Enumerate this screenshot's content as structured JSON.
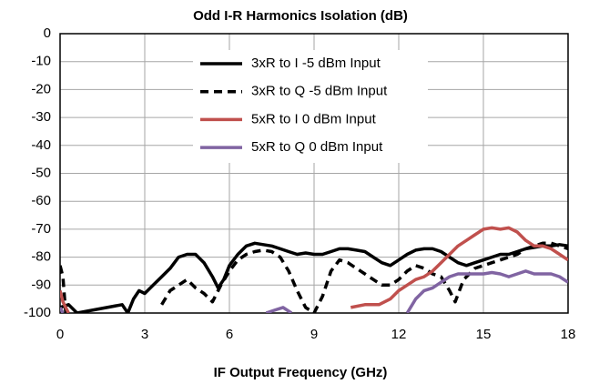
{
  "chart_data": {
    "type": "line",
    "title": "Odd I-R Harmonics Isolation (dB)",
    "xlabel": "IF Output Frequency (GHz)",
    "xlim": [
      0,
      18
    ],
    "xticks": [
      0,
      3,
      6,
      9,
      12,
      15,
      18
    ],
    "ylim": [
      -100,
      0
    ],
    "yticks": [
      0,
      -10,
      -20,
      -30,
      -40,
      -50,
      -60,
      -70,
      -80,
      -90,
      -100
    ],
    "grid": true,
    "legend": "upper right",
    "series": [
      {
        "name": "3xR to I -5 dBm Input",
        "color": "#000000",
        "dash": false,
        "x": [
          0,
          0.3,
          0.6,
          2.2,
          2.4,
          2.6,
          2.8,
          3.0,
          3.3,
          3.6,
          3.9,
          4.2,
          4.5,
          4.8,
          5.1,
          5.4,
          5.6,
          5.8,
          6.0,
          6.3,
          6.6,
          6.9,
          7.2,
          7.5,
          7.8,
          8.1,
          8.4,
          8.7,
          9.0,
          9.3,
          9.6,
          9.9,
          10.2,
          10.5,
          10.8,
          11.1,
          11.4,
          11.7,
          12.0,
          12.3,
          12.6,
          12.9,
          13.2,
          13.5,
          13.8,
          14.1,
          14.4,
          14.7,
          15.0,
          15.3,
          15.6,
          15.9,
          16.2,
          16.5,
          16.8,
          17.1,
          17.4,
          17.7,
          18
        ],
        "values": [
          -98,
          -97,
          -100,
          -97,
          -100,
          -95,
          -92,
          -93,
          -90,
          -87,
          -84,
          -80,
          -79,
          -79,
          -82,
          -87,
          -91,
          -88,
          -83,
          -79,
          -76,
          -75,
          -75.5,
          -76,
          -77,
          -78,
          -79,
          -78.5,
          -79,
          -79,
          -78,
          -77,
          -77,
          -77.5,
          -78,
          -80,
          -82,
          -83,
          -81,
          -79,
          -77.5,
          -77,
          -77,
          -78,
          -80,
          -82,
          -83,
          -82,
          -81,
          -80,
          -79,
          -79,
          -78,
          -77,
          -76.5,
          -76,
          -76,
          -75.5,
          -76
        ]
      },
      {
        "name": "3xR to Q -5 dBm Input",
        "color": "#000000",
        "dash": true,
        "x": [
          0,
          0.1,
          0.2,
          3.4,
          3.6,
          3.9,
          4.2,
          4.5,
          4.8,
          5.1,
          5.4,
          5.7,
          6.0,
          6.3,
          6.6,
          6.9,
          7.2,
          7.5,
          7.8,
          8.1,
          8.4,
          8.7,
          9.0,
          9.3,
          9.6,
          9.9,
          10.2,
          10.5,
          10.8,
          11.1,
          11.4,
          11.7,
          12.0,
          12.3,
          12.6,
          12.9,
          13.2,
          13.5,
          13.8,
          14.0,
          14.3,
          14.7,
          15.0,
          15.3,
          15.6,
          15.9,
          16.2,
          16.5,
          16.8,
          17.1,
          17.4,
          17.7,
          18
        ],
        "values": [
          -83,
          -87,
          -100,
          null,
          -97,
          -92,
          -90,
          -88,
          -91,
          -93,
          -96,
          -90,
          -85,
          -81,
          -79,
          -78,
          -77.5,
          -78,
          -80,
          -85,
          -92,
          -98,
          -100,
          -94,
          -85,
          -81,
          -82,
          -84,
          -86,
          -88,
          -90,
          -90,
          -88,
          -85,
          -83,
          -84,
          -86,
          -87,
          -92,
          -96,
          -88,
          -84,
          -83,
          -82,
          -81,
          -80,
          -79,
          -77,
          -76,
          -75,
          -75,
          -76,
          -77
        ]
      },
      {
        "name": "5xR to I 0 dBm Input",
        "color": "#c0504d",
        "dash": false,
        "x": [
          0,
          0.1,
          0.3,
          5,
          10.3,
          10.8,
          11.3,
          11.7,
          12.0,
          12.3,
          12.6,
          12.9,
          13.2,
          13.5,
          13.8,
          14.1,
          14.4,
          14.7,
          15.0,
          15.3,
          15.6,
          15.9,
          16.2,
          16.5,
          16.8,
          17.1,
          17.4,
          17.7,
          18
        ],
        "values": [
          -92,
          -96,
          -100,
          null,
          -98,
          -97,
          -97,
          -95,
          -92,
          -90,
          -88,
          -87,
          -85,
          -82,
          -79,
          -76,
          -74,
          -72,
          -70,
          -69.5,
          -70,
          -69.5,
          -71,
          -74,
          -76,
          -76,
          -77,
          -79,
          -81
        ]
      },
      {
        "name": "5xR to Q 0 dBm Input",
        "color": "#8064a2",
        "dash": false,
        "x": [
          0,
          0.1,
          4,
          7.3,
          7.6,
          7.9,
          8.2,
          10,
          12.3,
          12.6,
          12.9,
          13.2,
          13.5,
          13.8,
          14.1,
          14.4,
          14.7,
          15.0,
          15.3,
          15.6,
          15.9,
          16.2,
          16.5,
          16.8,
          17.1,
          17.4,
          17.7,
          18
        ],
        "values": [
          -98,
          -100,
          null,
          -100,
          -99,
          -98,
          -100,
          null,
          -100,
          -95,
          -92,
          -91,
          -89,
          -87,
          -86,
          -86,
          -86,
          -86,
          -85.5,
          -86,
          -87,
          -86,
          -85,
          -86,
          -86,
          -86,
          -87,
          -89
        ]
      }
    ]
  }
}
